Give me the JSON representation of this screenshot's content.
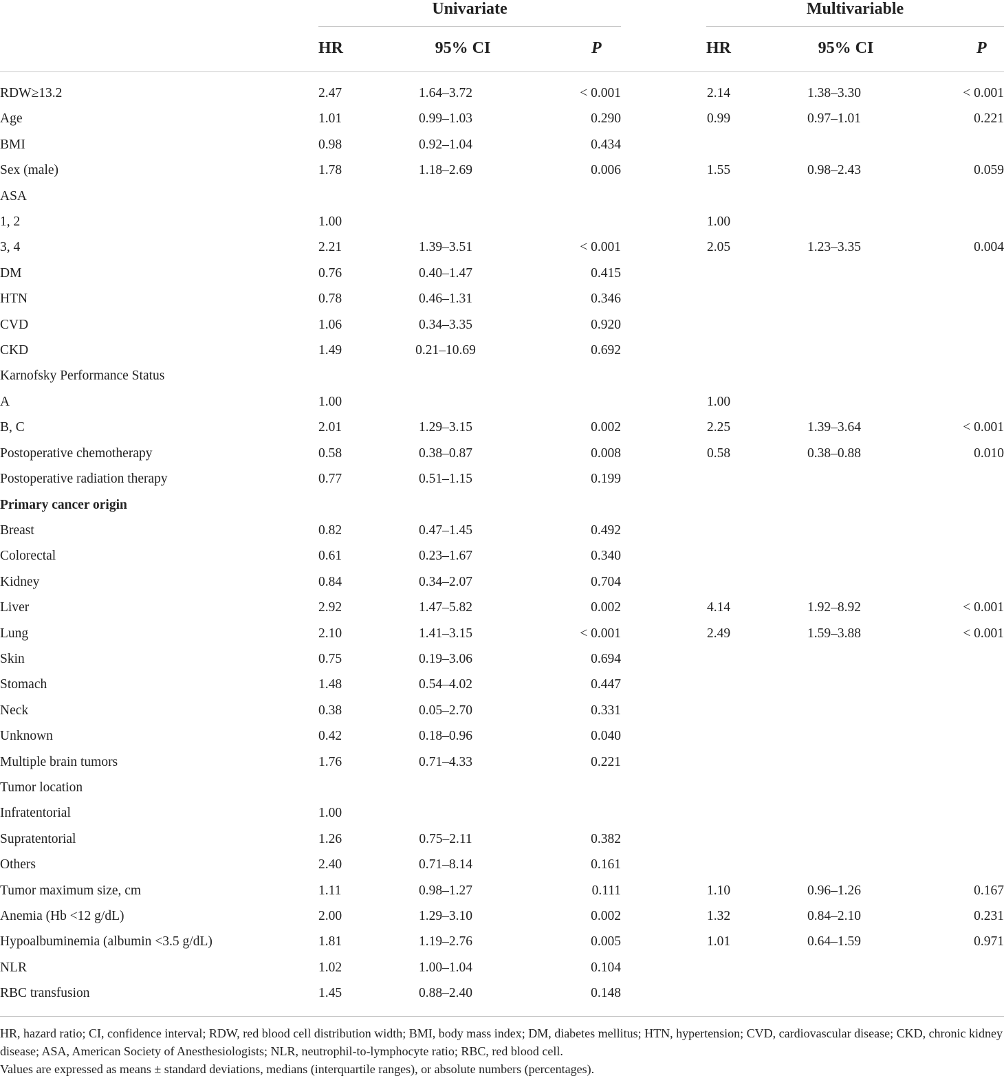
{
  "header": {
    "univariate_label": "Univariate",
    "multivariable_label": "Multivariable",
    "col_hr": "HR",
    "col_ci": "95% CI",
    "col_p": "P"
  },
  "rows": [
    {
      "label": "RDW≥13.2",
      "bold": false,
      "u_hr": "2.47",
      "u_ci": "1.64–3.72",
      "u_p": "< 0.001",
      "m_hr": "2.14",
      "m_ci": "1.38–3.30",
      "m_p": "< 0.001"
    },
    {
      "label": "Age",
      "bold": false,
      "u_hr": "1.01",
      "u_ci": "0.99–1.03",
      "u_p": "0.290",
      "m_hr": "0.99",
      "m_ci": "0.97–1.01",
      "m_p": "0.221"
    },
    {
      "label": "BMI",
      "bold": false,
      "u_hr": "0.98",
      "u_ci": "0.92–1.04",
      "u_p": "0.434",
      "m_hr": "",
      "m_ci": "",
      "m_p": ""
    },
    {
      "label": "Sex (male)",
      "bold": false,
      "u_hr": "1.78",
      "u_ci": "1.18–2.69",
      "u_p": "0.006",
      "m_hr": "1.55",
      "m_ci": "0.98–2.43",
      "m_p": "0.059"
    },
    {
      "label": "ASA",
      "bold": false,
      "u_hr": "",
      "u_ci": "",
      "u_p": "",
      "m_hr": "",
      "m_ci": "",
      "m_p": ""
    },
    {
      "label": "1, 2",
      "bold": false,
      "u_hr": "1.00",
      "u_ci": "",
      "u_p": "",
      "m_hr": "1.00",
      "m_ci": "",
      "m_p": ""
    },
    {
      "label": "3, 4",
      "bold": false,
      "u_hr": "2.21",
      "u_ci": "1.39–3.51",
      "u_p": "< 0.001",
      "m_hr": "2.05",
      "m_ci": "1.23–3.35",
      "m_p": "0.004"
    },
    {
      "label": "DM",
      "bold": false,
      "u_hr": "0.76",
      "u_ci": "0.40–1.47",
      "u_p": "0.415",
      "m_hr": "",
      "m_ci": "",
      "m_p": ""
    },
    {
      "label": "HTN",
      "bold": false,
      "u_hr": "0.78",
      "u_ci": "0.46–1.31",
      "u_p": "0.346",
      "m_hr": "",
      "m_ci": "",
      "m_p": ""
    },
    {
      "label": "CVD",
      "bold": false,
      "u_hr": "1.06",
      "u_ci": "0.34–3.35",
      "u_p": "0.920",
      "m_hr": "",
      "m_ci": "",
      "m_p": ""
    },
    {
      "label": "CKD",
      "bold": false,
      "u_hr": "1.49",
      "u_ci": "0.21–10.69",
      "u_p": "0.692",
      "m_hr": "",
      "m_ci": "",
      "m_p": ""
    },
    {
      "label": "Karnofsky Performance Status",
      "bold": false,
      "u_hr": "",
      "u_ci": "",
      "u_p": "",
      "m_hr": "",
      "m_ci": "",
      "m_p": ""
    },
    {
      "label": "A",
      "bold": false,
      "u_hr": "1.00",
      "u_ci": "",
      "u_p": "",
      "m_hr": "1.00",
      "m_ci": "",
      "m_p": ""
    },
    {
      "label": "B, C",
      "bold": false,
      "u_hr": "2.01",
      "u_ci": "1.29–3.15",
      "u_p": "0.002",
      "m_hr": "2.25",
      "m_ci": "1.39–3.64",
      "m_p": "< 0.001"
    },
    {
      "label": "Postoperative chemotherapy",
      "bold": false,
      "u_hr": "0.58",
      "u_ci": "0.38–0.87",
      "u_p": "0.008",
      "m_hr": "0.58",
      "m_ci": "0.38–0.88",
      "m_p": "0.010"
    },
    {
      "label": "Postoperative radiation therapy",
      "bold": false,
      "u_hr": "0.77",
      "u_ci": "0.51–1.15",
      "u_p": "0.199",
      "m_hr": "",
      "m_ci": "",
      "m_p": ""
    },
    {
      "label": "Primary cancer origin",
      "bold": true,
      "u_hr": "",
      "u_ci": "",
      "u_p": "",
      "m_hr": "",
      "m_ci": "",
      "m_p": ""
    },
    {
      "label": "Breast",
      "bold": false,
      "u_hr": "0.82",
      "u_ci": "0.47–1.45",
      "u_p": "0.492",
      "m_hr": "",
      "m_ci": "",
      "m_p": ""
    },
    {
      "label": "Colorectal",
      "bold": false,
      "u_hr": "0.61",
      "u_ci": "0.23–1.67",
      "u_p": "0.340",
      "m_hr": "",
      "m_ci": "",
      "m_p": ""
    },
    {
      "label": "Kidney",
      "bold": false,
      "u_hr": "0.84",
      "u_ci": "0.34–2.07",
      "u_p": "0.704",
      "m_hr": "",
      "m_ci": "",
      "m_p": ""
    },
    {
      "label": "Liver",
      "bold": false,
      "u_hr": "2.92",
      "u_ci": "1.47–5.82",
      "u_p": "0.002",
      "m_hr": "4.14",
      "m_ci": "1.92–8.92",
      "m_p": "< 0.001"
    },
    {
      "label": "Lung",
      "bold": false,
      "u_hr": "2.10",
      "u_ci": "1.41–3.15",
      "u_p": "< 0.001",
      "m_hr": "2.49",
      "m_ci": "1.59–3.88",
      "m_p": "< 0.001"
    },
    {
      "label": "Skin",
      "bold": false,
      "u_hr": "0.75",
      "u_ci": "0.19–3.06",
      "u_p": "0.694",
      "m_hr": "",
      "m_ci": "",
      "m_p": ""
    },
    {
      "label": "Stomach",
      "bold": false,
      "u_hr": "1.48",
      "u_ci": "0.54–4.02",
      "u_p": "0.447",
      "m_hr": "",
      "m_ci": "",
      "m_p": ""
    },
    {
      "label": "Neck",
      "bold": false,
      "u_hr": "0.38",
      "u_ci": "0.05–2.70",
      "u_p": "0.331",
      "m_hr": "",
      "m_ci": "",
      "m_p": ""
    },
    {
      "label": "Unknown",
      "bold": false,
      "u_hr": "0.42",
      "u_ci": "0.18–0.96",
      "u_p": "0.040",
      "m_hr": "",
      "m_ci": "",
      "m_p": ""
    },
    {
      "label": "Multiple brain tumors",
      "bold": false,
      "u_hr": "1.76",
      "u_ci": "0.71–4.33",
      "u_p": "0.221",
      "m_hr": "",
      "m_ci": "",
      "m_p": ""
    },
    {
      "label": "Tumor location",
      "bold": false,
      "u_hr": "",
      "u_ci": "",
      "u_p": "",
      "m_hr": "",
      "m_ci": "",
      "m_p": ""
    },
    {
      "label": "Infratentorial",
      "bold": false,
      "u_hr": "1.00",
      "u_ci": "",
      "u_p": "",
      "m_hr": "",
      "m_ci": "",
      "m_p": ""
    },
    {
      "label": "Supratentorial",
      "bold": false,
      "u_hr": "1.26",
      "u_ci": "0.75–2.11",
      "u_p": "0.382",
      "m_hr": "",
      "m_ci": "",
      "m_p": ""
    },
    {
      "label": "Others",
      "bold": false,
      "u_hr": "2.40",
      "u_ci": "0.71–8.14",
      "u_p": "0.161",
      "m_hr": "",
      "m_ci": "",
      "m_p": ""
    },
    {
      "label": "Tumor maximum size, cm",
      "bold": false,
      "u_hr": "1.11",
      "u_ci": "0.98–1.27",
      "u_p": "0.111",
      "m_hr": "1.10",
      "m_ci": "0.96–1.26",
      "m_p": "0.167"
    },
    {
      "label": "Anemia (Hb <12 g/dL)",
      "bold": false,
      "u_hr": "2.00",
      "u_ci": "1.29–3.10",
      "u_p": "0.002",
      "m_hr": "1.32",
      "m_ci": "0.84–2.10",
      "m_p": "0.231"
    },
    {
      "label": "Hypoalbuminemia (albumin <3.5 g/dL)",
      "bold": false,
      "u_hr": "1.81",
      "u_ci": "1.19–2.76",
      "u_p": "0.005",
      "m_hr": "1.01",
      "m_ci": "0.64–1.59",
      "m_p": "0.971"
    },
    {
      "label": "NLR",
      "bold": false,
      "u_hr": "1.02",
      "u_ci": "1.00–1.04",
      "u_p": "0.104",
      "m_hr": "",
      "m_ci": "",
      "m_p": ""
    },
    {
      "label": "RBC transfusion",
      "bold": false,
      "u_hr": "1.45",
      "u_ci": "0.88–2.40",
      "u_p": "0.148",
      "m_hr": "",
      "m_ci": "",
      "m_p": ""
    }
  ],
  "footnotes": {
    "abbreviations": "HR, hazard ratio; CI, confidence interval; RDW, red blood cell distribution width; BMI, body mass index; DM, diabetes mellitus; HTN, hypertension; CVD, cardiovascular disease; CKD, chronic kidney disease; ASA, American Society of Anesthesiologists; NLR, neutrophil-to-lymphocyte ratio; RBC, red blood cell.",
    "values_note": "Values are expressed as means ± standard deviations, medians (interquartile ranges), or absolute numbers (percentages)."
  }
}
